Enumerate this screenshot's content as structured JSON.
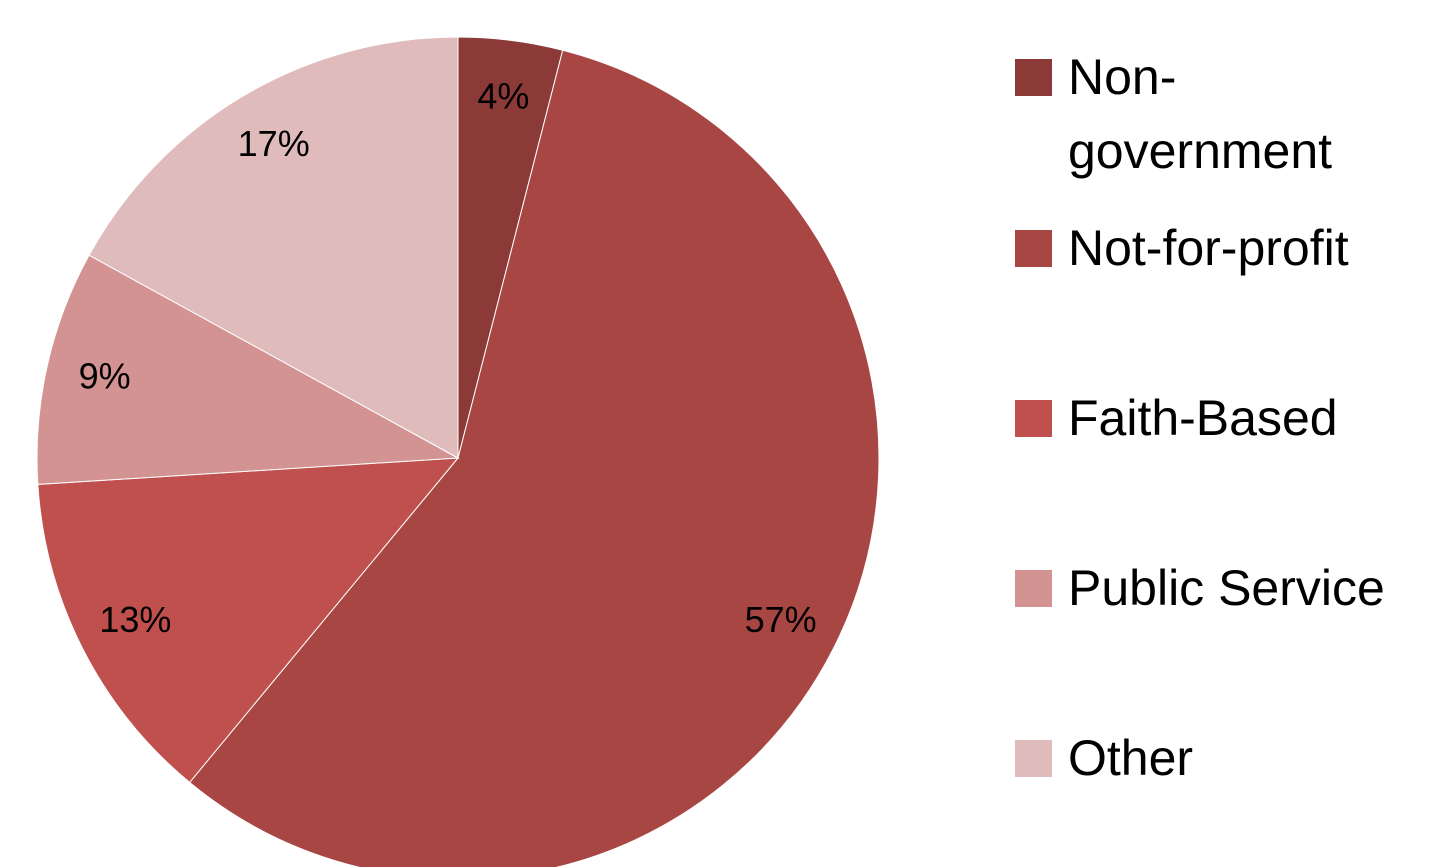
{
  "chart_data": {
    "type": "pie",
    "categories": [
      "Non-government",
      "Not-for-profit",
      "Faith-Based",
      "Public Service",
      "Other"
    ],
    "values": [
      4,
      57,
      13,
      9,
      17
    ],
    "value_labels": [
      "4%",
      "57%",
      "13%",
      "9%",
      "17%"
    ],
    "colors": [
      "#8c3a38",
      "#a84644",
      "#c0504d",
      "#d39392",
      "#e0bbbb"
    ],
    "legend": "right"
  }
}
